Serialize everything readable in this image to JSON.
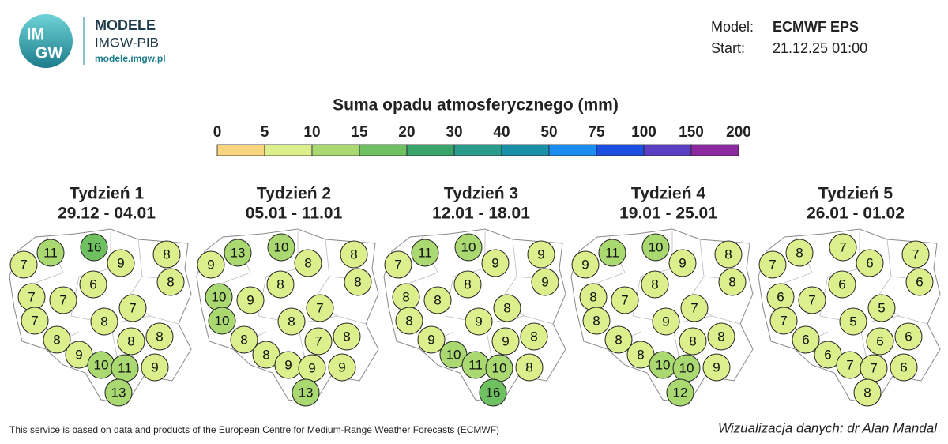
{
  "header": {
    "logo_lines": [
      "IM",
      "GW"
    ],
    "brand": "MODELE",
    "org": "IMGW-PIB",
    "url": "modele.imgw.pl"
  },
  "model": {
    "model_label": "Model:",
    "model_value": "ECMWF EPS",
    "start_label": "Start:",
    "start_value": "21.12.25 01:00"
  },
  "legend": {
    "title": "Suma opadu atmosferycznego (mm)",
    "ticks": [
      0,
      5,
      10,
      15,
      20,
      30,
      40,
      50,
      75,
      100,
      150,
      200
    ],
    "colors": [
      "#f9d57f",
      "#dcef8c",
      "#aad972",
      "#6fc061",
      "#3aa56a",
      "#2a9b8c",
      "#1a8fa8",
      "#1b8cf0",
      "#1c4fe0",
      "#5b3fc2",
      "#8b2a9e"
    ]
  },
  "maps": [
    {
      "title": "Tydzień 1",
      "dates": "29.12 - 04.01",
      "values": [
        11,
        16,
        9,
        8,
        7,
        8,
        6,
        7,
        7,
        7,
        7,
        8,
        8,
        8,
        8,
        9,
        10,
        11,
        9,
        13
      ]
    },
    {
      "title": "Tydzień 2",
      "dates": "05.01 - 11.01",
      "values": [
        13,
        10,
        8,
        8,
        9,
        8,
        8,
        10,
        9,
        7,
        10,
        8,
        8,
        8,
        7,
        8,
        9,
        9,
        9,
        13
      ]
    },
    {
      "title": "Tydzień 3",
      "dates": "12.01 - 18.01",
      "values": [
        11,
        10,
        9,
        9,
        7,
        9,
        8,
        8,
        8,
        8,
        8,
        9,
        8,
        9,
        9,
        10,
        11,
        10,
        8,
        16
      ]
    },
    {
      "title": "Tydzień 4",
      "dates": "19.01 - 25.01",
      "values": [
        11,
        10,
        9,
        8,
        9,
        8,
        8,
        8,
        7,
        7,
        8,
        9,
        8,
        8,
        8,
        8,
        10,
        10,
        9,
        12
      ]
    },
    {
      "title": "Tydzień 5",
      "dates": "26.01 - 01.02",
      "values": [
        8,
        7,
        6,
        7,
        7,
        6,
        6,
        6,
        7,
        5,
        7,
        5,
        6,
        6,
        6,
        6,
        7,
        7,
        6,
        8
      ]
    }
  ],
  "footer": {
    "source": "This service is based on data and products of the European Centre for Medium-Range Weather Forecasts (ECMWF)",
    "credit": "Wizualizacja danych: dr Alan Mandal"
  }
}
